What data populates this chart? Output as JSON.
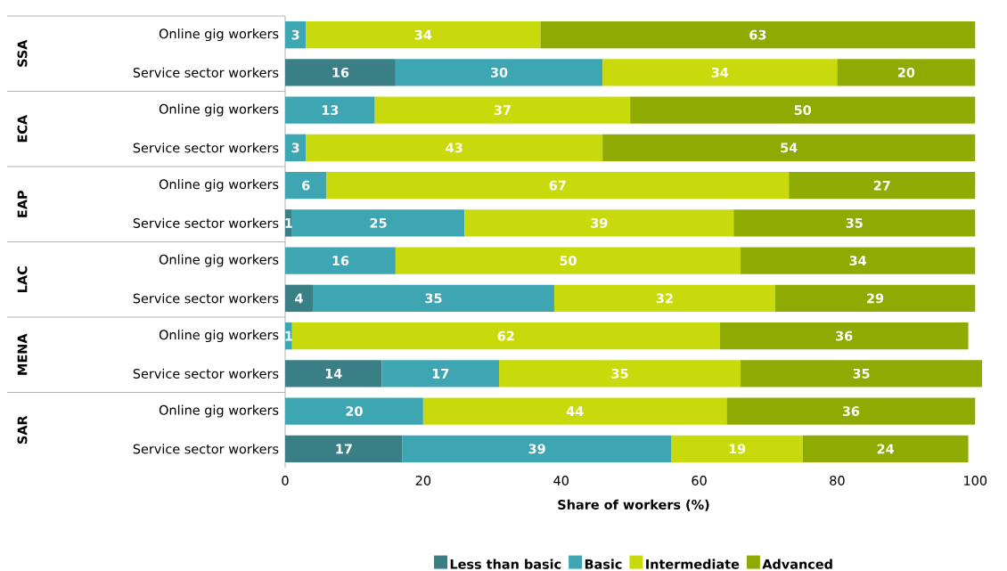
{
  "chart_data": {
    "type": "bar",
    "orientation": "horizontal",
    "stacked": true,
    "data_labels": true,
    "legend": "bottom",
    "grid": false,
    "xlabel": "Share of workers (%)",
    "categories": [
      "Online gig workers",
      "Service sector workers",
      "Online gig workers",
      "Service sector workers",
      "Online gig workers",
      "Service sector workers",
      "Online gig workers",
      "Service sector workers",
      "Online gig workers",
      "Service sector workers",
      "Online gig workers",
      "Service sector workers"
    ],
    "annotations": [
      "SSA",
      "ECA",
      "EAP",
      "LAC",
      "MENA",
      "SAR"
    ],
    "xlim": [
      0,
      101
    ],
    "xticks": [
      0,
      20,
      40,
      60,
      80,
      100
    ],
    "series": [
      {
        "name": "Less than basic",
        "color": "#3b7f86",
        "values": [
          null,
          16,
          null,
          null,
          null,
          1,
          null,
          4,
          null,
          14,
          null,
          17
        ]
      },
      {
        "name": "Basic",
        "color": "#3ea6b3",
        "values": [
          3,
          30,
          13,
          3,
          6,
          25,
          16,
          35,
          1,
          17,
          20,
          39
        ]
      },
      {
        "name": "Intermediate",
        "color": "#c9da0c",
        "values": [
          34,
          34,
          37,
          43,
          67,
          39,
          50,
          32,
          62,
          35,
          44,
          19
        ]
      },
      {
        "name": "Advanced",
        "color": "#8fab03",
        "values": [
          63,
          20,
          50,
          54,
          27,
          35,
          34,
          29,
          36,
          35,
          36,
          24
        ]
      }
    ]
  }
}
